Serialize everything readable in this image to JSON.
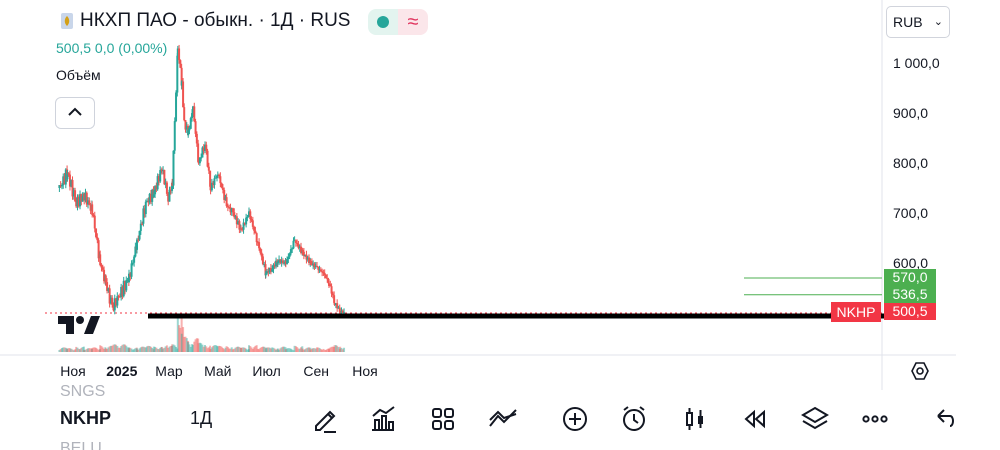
{
  "header": {
    "title": "НКХП ПАО - обыкн. · 1Д · RUS",
    "price_line": "500,5  0,0 (0,00%)",
    "volume_label": "Объём",
    "currency": "RUB",
    "colors": {
      "up": "#26a69a",
      "down": "#ef5350"
    }
  },
  "price_axis": {
    "ticks": [
      "1 000,0",
      "900,0",
      "800,0",
      "700,0",
      "600,0"
    ]
  },
  "price_tags": [
    {
      "label": "570,0",
      "value": 570.0,
      "color": "#4caf50"
    },
    {
      "label": "536,5",
      "value": 536.5,
      "color": "#4caf50"
    },
    {
      "label": "500,5",
      "value": 500.5,
      "color": "#f23645"
    }
  ],
  "ticker_tag": "NKHP",
  "time_axis": {
    "ticks": [
      "Ноя",
      "2025",
      "Мар",
      "Май",
      "Июл",
      "Сен",
      "Ноя"
    ]
  },
  "toolbar": {
    "symbol_prev": "SNGS",
    "symbol": "NKHP",
    "symbol_next": "BELU",
    "interval": "1Д",
    "icons": [
      "draw-icon",
      "indicators-icon",
      "layouts-icon",
      "compare-icon",
      "add-icon",
      "alert-icon",
      "chart-type-icon",
      "replay-icon",
      "layers-icon",
      "more-icon",
      "undo-icon"
    ]
  },
  "chart_data": {
    "type": "candlestick",
    "title": "НКХП ПАО - обыкн. · 1Д · RUS",
    "xlabel": "",
    "ylabel": "",
    "x_ticks": [
      "Ноя",
      "2025",
      "Мар",
      "Май",
      "Июл",
      "Сен",
      "Ноя"
    ],
    "y_ticks": [
      1000,
      900,
      800,
      700,
      600
    ],
    "ylim": [
      470,
      1060
    ],
    "last_price": 500.5,
    "horizontal_levels": [
      570.0,
      536.5,
      500.5
    ],
    "series": [
      {
        "name": "NKHP",
        "x": [
          "2024-10-15",
          "2024-10-25",
          "2024-11-05",
          "2024-11-15",
          "2024-11-25",
          "2024-12-05",
          "2024-12-12",
          "2024-12-20",
          "2025-01-10",
          "2025-01-20",
          "2025-01-31",
          "2025-02-10",
          "2025-02-20",
          "2025-02-28",
          "2025-03-05",
          "2025-03-12",
          "2025-03-17",
          "2025-03-20",
          "2025-03-25",
          "2025-03-31",
          "2025-04-07",
          "2025-04-15",
          "2025-04-22",
          "2025-05-01",
          "2025-05-12",
          "2025-05-20",
          "2025-05-30",
          "2025-06-09",
          "2025-06-20",
          "2025-06-30",
          "2025-07-08",
          "2025-07-15",
          "2025-07-25",
          "2025-08-05",
          "2025-08-15",
          "2025-08-25",
          "2025-09-02",
          "2025-09-10",
          "2025-09-17",
          "2025-09-24",
          "2025-10-01",
          "2025-10-06"
        ],
        "close": [
          750,
          780,
          720,
          735,
          705,
          600,
          560,
          510,
          570,
          640,
          720,
          740,
          790,
          730,
          760,
          1030,
          960,
          880,
          860,
          910,
          800,
          840,
          750,
          780,
          715,
          700,
          665,
          700,
          640,
          580,
          590,
          605,
          600,
          645,
          620,
          600,
          590,
          580,
          560,
          520,
          503,
          500.5
        ],
        "volume": [
          6,
          5,
          7,
          5,
          6,
          9,
          8,
          10,
          6,
          7,
          8,
          7,
          9,
          8,
          10,
          60,
          40,
          20,
          15,
          18,
          12,
          10,
          9,
          8,
          8,
          7,
          6,
          9,
          7,
          6,
          6,
          7,
          5,
          8,
          6,
          5,
          6,
          5,
          7,
          9,
          8,
          5
        ]
      }
    ]
  }
}
